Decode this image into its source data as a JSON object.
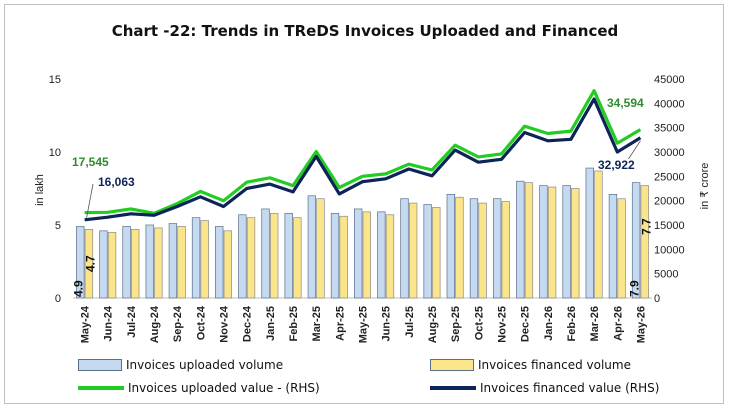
{
  "chart_data": {
    "type": "bar",
    "title": "Chart -22: Trends in TReDS Invoices Uploaded and Financed",
    "ylabel_left": "in lakh",
    "ylabel_right": "in ₹ crore",
    "ylim_left": [
      0,
      15
    ],
    "ylim_right": [
      0,
      45000
    ],
    "yticks_left": [
      "0",
      "5",
      "10",
      "15"
    ],
    "yticks_right": [
      "0",
      "5000",
      "10000",
      "15000",
      "20000",
      "25000",
      "30000",
      "35000",
      "40000",
      "45000"
    ],
    "categories": [
      "May-24",
      "Jun-24",
      "Jul-24",
      "Aug-24",
      "Sep-24",
      "Oct-24",
      "Nov-24",
      "Dec-24",
      "Jan-25",
      "Feb-25",
      "Mar-25",
      "Apr-25",
      "May-25",
      "Jun-25",
      "Jul-25",
      "Aug-25",
      "Sep-25",
      "Oct-25",
      "Nov-25",
      "Dec-25",
      "Jan-26",
      "Feb-26",
      "Mar-26",
      "Apr-26",
      "May-26"
    ],
    "series": [
      {
        "name": "Invoices uploaded volume",
        "kind": "bar",
        "axis": "left",
        "color": "#c5d9f1",
        "values": [
          4.9,
          4.6,
          4.9,
          5.0,
          5.1,
          5.5,
          4.9,
          5.7,
          6.1,
          5.8,
          7.0,
          5.8,
          6.1,
          5.9,
          6.8,
          6.4,
          7.1,
          6.8,
          6.8,
          8.0,
          7.7,
          7.7,
          8.9,
          7.1,
          7.9
        ]
      },
      {
        "name": "Invoices financed volume",
        "kind": "bar",
        "axis": "left",
        "color": "#fbe58a",
        "values": [
          4.7,
          4.5,
          4.7,
          4.8,
          4.9,
          5.3,
          4.6,
          5.5,
          5.8,
          5.5,
          6.8,
          5.6,
          5.9,
          5.7,
          6.5,
          6.2,
          6.9,
          6.5,
          6.6,
          7.9,
          7.6,
          7.5,
          8.7,
          6.8,
          7.7
        ]
      },
      {
        "name": "Invoices uploaded value - (RHS)",
        "kind": "line",
        "axis": "right",
        "color": "#22cc22",
        "values": [
          17545,
          17600,
          18300,
          17400,
          19400,
          21900,
          20000,
          23800,
          24700,
          23100,
          30100,
          22700,
          25000,
          25500,
          27500,
          26300,
          31400,
          29000,
          29600,
          35300,
          33800,
          34300,
          42600,
          31800,
          34594
        ]
      },
      {
        "name": "Invoices financed value (RHS)",
        "kind": "line",
        "axis": "right",
        "color": "#0c2456",
        "values": [
          16063,
          16600,
          17300,
          17000,
          18800,
          20800,
          18800,
          22500,
          23400,
          21800,
          29100,
          21400,
          23900,
          24500,
          26500,
          25100,
          30400,
          27900,
          28500,
          34000,
          32300,
          32600,
          40900,
          30000,
          32922
        ]
      }
    ],
    "data_labels": {
      "uploaded_value_first": "17,545",
      "financed_value_first": "16,063",
      "uploaded_value_last": "34,594",
      "financed_value_last": "32,922",
      "uploaded_volume_first": "4.9",
      "financed_volume_first": "4.7",
      "uploaded_volume_last": "7.9",
      "financed_volume_last": "7.7"
    },
    "legend_position": "bottom",
    "grid": false
  }
}
